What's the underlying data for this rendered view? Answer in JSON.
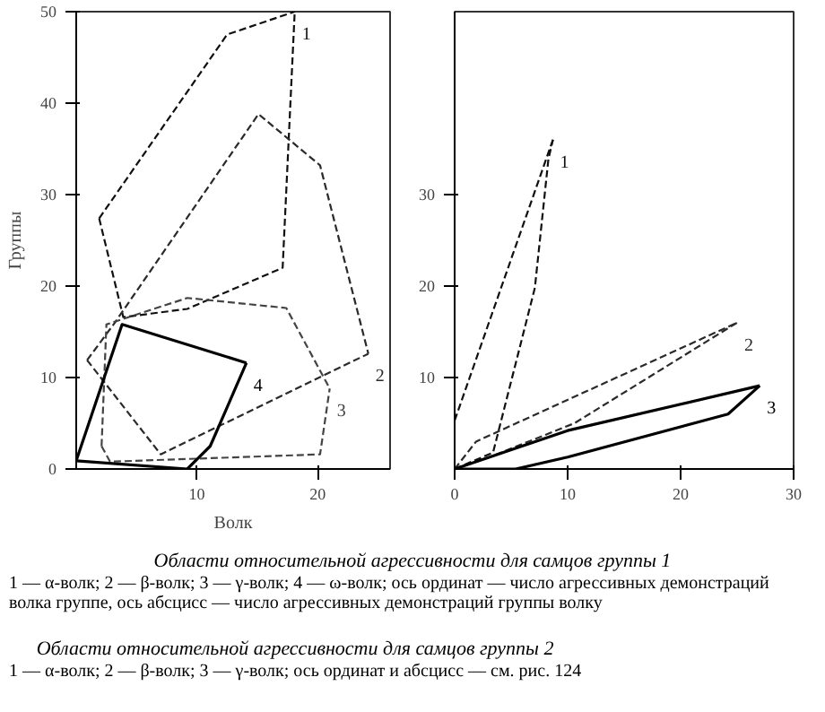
{
  "chart_data": [
    {
      "type": "line",
      "title": "Области относительной агрессивности для самцов группы 1",
      "xlabel": "Волк",
      "ylabel": "Группы",
      "xlim": [
        0,
        26
      ],
      "xticks": [
        10,
        20
      ],
      "ylim": [
        0,
        50
      ],
      "yticks": [
        0,
        10,
        20,
        30,
        40,
        50
      ],
      "grid": false,
      "series": [
        {
          "name": "1",
          "color": "#101010",
          "line_style": "dashed",
          "x": [
            1.9,
            12.5,
            18.1
          ],
          "values": [
            27.4,
            47.5,
            50
          ]
        },
        {
          "color": "#101010",
          "line_style": "dashed",
          "x": [
            1.9,
            3.9,
            9.2,
            17.1,
            18.1
          ],
          "values": [
            27.4,
            16.6,
            17.5,
            22,
            50
          ]
        },
        {
          "name": "2",
          "color": "#2a2a2a",
          "line_style": "dashed",
          "x": [
            0.9,
            3.2,
            15.1,
            20.2,
            24.2
          ],
          "values": [
            11.9,
            16,
            38.8,
            33.2,
            12.6
          ]
        },
        {
          "color": "#2a2a2a",
          "line_style": "dashed",
          "x": [
            0.9,
            7,
            24.2
          ],
          "values": [
            11.9,
            1.6,
            12.6
          ]
        },
        {
          "name": "3",
          "color": "#444444",
          "line_style": "dashed",
          "x": [
            2.1,
            2.5,
            9.2,
            17.4,
            21
          ],
          "values": [
            2.5,
            15.8,
            18.7,
            17.6,
            8.8
          ]
        },
        {
          "color": "#444444",
          "line_style": "dashed",
          "x": [
            2.1,
            2.8,
            20.2,
            21
          ],
          "values": [
            2.5,
            0.8,
            1.6,
            8.8
          ]
        },
        {
          "name": "4",
          "color": "#000000",
          "line_style": "solid",
          "x": [
            0,
            3.8,
            14.1
          ],
          "values": [
            0.9,
            15.8,
            11.6
          ]
        },
        {
          "color": "#000000",
          "line_style": "solid",
          "x": [
            0,
            9.2,
            11.1,
            14.1
          ],
          "values": [
            0.9,
            0,
            2.5,
            11.6
          ]
        }
      ],
      "annotations": [
        "1 — α-волк; 2 — β-волк; 3 — γ-волк; 4 — ω-волк; ось ординат — число агрессивных демонстраций волка группе, ось абсцисс — число агрессивных демонстраций группы волку"
      ]
    },
    {
      "type": "line",
      "title": "Области относительной агрессивности для самцов группы 2",
      "xlim": [
        0,
        30
      ],
      "xticks": [
        0,
        10,
        20,
        30
      ],
      "ylim": [
        0,
        50
      ],
      "yticks": [
        10,
        20,
        30
      ],
      "grid": false,
      "series": [
        {
          "name": "1",
          "color": "#101010",
          "line_style": "dashed",
          "x": [
            0,
            8.7
          ],
          "values": [
            5.3,
            36
          ]
        },
        {
          "color": "#101010",
          "line_style": "dashed",
          "x": [
            0,
            3.4,
            7.1,
            8.3,
            8.7
          ],
          "values": [
            0,
            1.8,
            19.8,
            33.9,
            36
          ]
        },
        {
          "name": "2",
          "color": "#2a2a2a",
          "line_style": "dashed",
          "x": [
            0,
            1.9,
            25
          ],
          "values": [
            0,
            3,
            16
          ]
        },
        {
          "color": "#2a2a2a",
          "line_style": "dashed",
          "x": [
            0,
            3.1,
            10.6,
            25
          ],
          "values": [
            0,
            1.3,
            5,
            16
          ]
        },
        {
          "name": "3",
          "color": "#000000",
          "line_style": "solid",
          "x": [
            0,
            10,
            27
          ],
          "values": [
            0,
            4.2,
            9.1
          ]
        },
        {
          "color": "#000000",
          "line_style": "solid",
          "x": [
            0,
            5.4,
            10,
            24.2,
            27
          ],
          "values": [
            0,
            0,
            1.3,
            6,
            9.1
          ]
        }
      ],
      "annotations": [
        "1 — α-волк; 2 — β-волк; 3 — γ-волк; ось ординат и абсцисс — см. рис. 124"
      ]
    }
  ]
}
